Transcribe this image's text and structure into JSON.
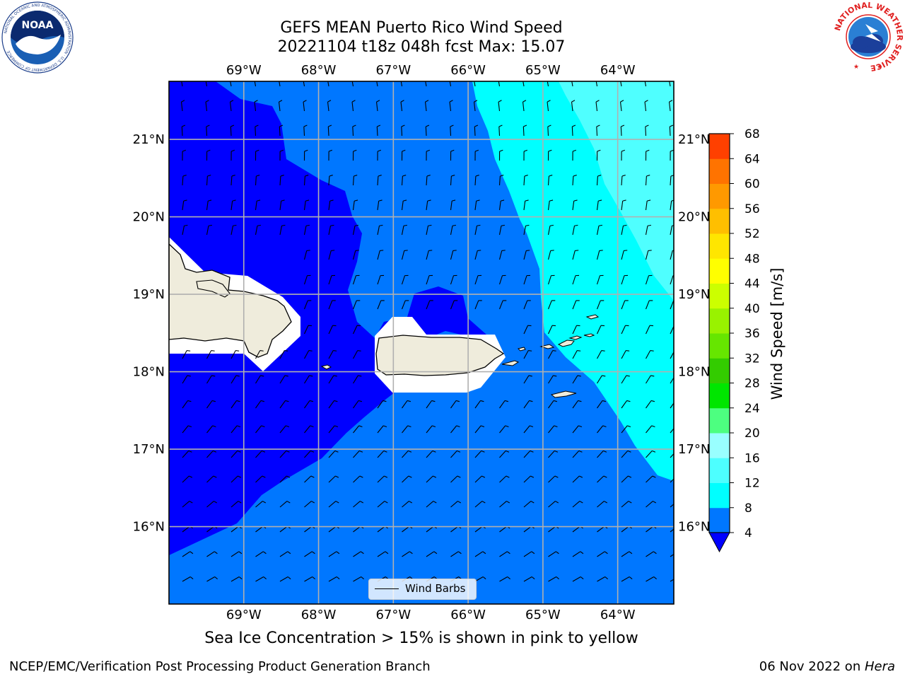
{
  "title": {
    "line1": "GEFS MEAN Puerto Rico Wind Speed",
    "line2": "20221104 t18z 048h fcst   Max: 15.07"
  },
  "map": {
    "lon_ticks": [
      "69°W",
      "68°W",
      "67°W",
      "66°W",
      "65°W",
      "64°W"
    ],
    "lat_ticks": [
      "21°N",
      "20°N",
      "19°N",
      "18°N",
      "17°N",
      "16°N"
    ],
    "lon_values": [
      -69,
      -68,
      -67,
      -66,
      -65,
      -64
    ],
    "lat_values": [
      21,
      20,
      19,
      18,
      17,
      16
    ],
    "lon_range": [
      -70.0,
      -63.25
    ],
    "lat_range": [
      15.0,
      21.75
    ],
    "land_color": "#efecdc",
    "grid_color": "#b0b0b0",
    "regions": {
      "deep_blue": "#0000ff",
      "mid_blue": "#0077ff",
      "cyan": "#00ffff",
      "light_cyan": "#4fffff"
    }
  },
  "legend": {
    "label": "Wind Barbs"
  },
  "colorbar": {
    "label": "Wind Speed [m/s]",
    "ticks": [
      "4",
      "8",
      "12",
      "16",
      "20",
      "24",
      "28",
      "32",
      "36",
      "40",
      "44",
      "48",
      "52",
      "56",
      "60",
      "64",
      "68"
    ],
    "levels": [
      4,
      8,
      12,
      16,
      20,
      24,
      28,
      32,
      36,
      40,
      44,
      48,
      52,
      56,
      60,
      64,
      68
    ],
    "colors": [
      "#0077ff",
      "#00ffff",
      "#4dffff",
      "#99ffff",
      "#4dff80",
      "#00e600",
      "#33cc00",
      "#66e600",
      "#99f200",
      "#ccff00",
      "#ffff00",
      "#ffe600",
      "#ffbf00",
      "#ff9900",
      "#ff7300",
      "#ff4000",
      "#ff0000"
    ],
    "under_color": "#0000ff"
  },
  "caption": "Sea Ice Concentration > 15% is shown in pink to yellow",
  "footer": {
    "left": "NCEP/EMC/Verification Post Processing Product Generation Branch",
    "right_date": "06 Nov 2022 on ",
    "right_host": "Hera"
  },
  "logos": {
    "noaa": {
      "text": "NOAA",
      "ring": "NATIONAL OCEANIC AND ATMOSPHERIC ADMINISTRATION · U.S. DEPARTMENT OF COMMERCE"
    },
    "nws": {
      "ring": "NATIONAL WEATHER SERVICE"
    }
  }
}
